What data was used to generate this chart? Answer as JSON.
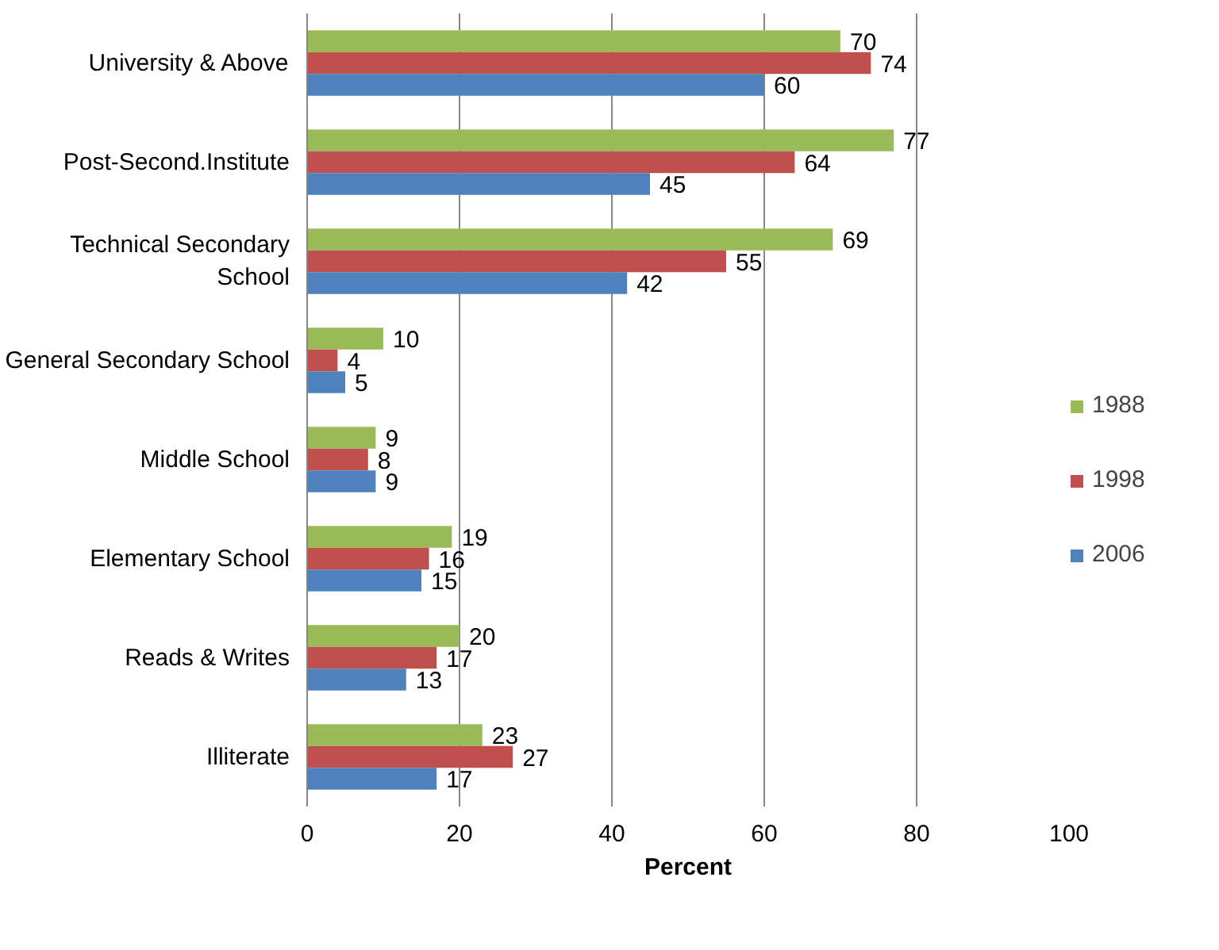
{
  "chart_data": {
    "type": "bar",
    "orientation": "horizontal",
    "xlabel": "Percent",
    "categories": [
      "University & Above",
      "Post-Second.Institute",
      "Technical Secondary\nSchool",
      "General Secondary School",
      "Middle School",
      "Elementary School",
      "Reads & Writes",
      "Illiterate"
    ],
    "series": [
      {
        "name": "1988",
        "color": "#9bbb59",
        "values": [
          70,
          77,
          69,
          10,
          9,
          19,
          20,
          23
        ]
      },
      {
        "name": "1998",
        "color": "#c0504d",
        "values": [
          74,
          64,
          55,
          4,
          8,
          16,
          17,
          27
        ]
      },
      {
        "name": "2006",
        "color": "#4f81bd",
        "values": [
          60,
          45,
          42,
          5,
          9,
          15,
          13,
          17
        ]
      }
    ],
    "xlim": [
      0,
      100
    ],
    "xticks": [
      0,
      20,
      40,
      60,
      80,
      100
    ],
    "grid": "x",
    "legend": "right",
    "data_labels": true
  }
}
